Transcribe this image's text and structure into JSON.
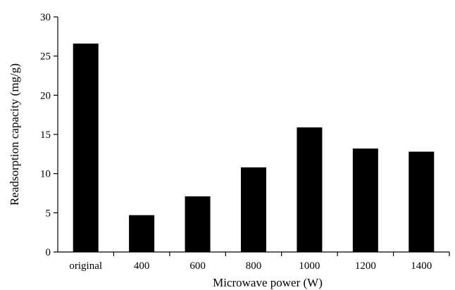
{
  "chart_data": {
    "type": "bar",
    "title": "",
    "xlabel": "Microwave power (W)",
    "ylabel": "Readsorption capacity (mg/g)",
    "categories": [
      "original",
      "400",
      "600",
      "800",
      "1000",
      "1200",
      "1400"
    ],
    "values": [
      26.6,
      4.7,
      7.1,
      10.8,
      15.9,
      13.2,
      12.8
    ],
    "ylim": [
      0,
      30
    ],
    "yticks": [
      "0",
      "5",
      "10",
      "15",
      "20",
      "25",
      "30"
    ],
    "grid": false,
    "legend": "none",
    "bar_color": "#000000"
  }
}
